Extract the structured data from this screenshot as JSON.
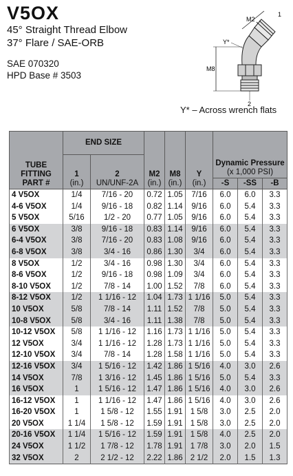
{
  "header": {
    "title": "V5OX",
    "line1": "45° Straight Thread Elbow",
    "line2": "37° Flare / SAE-ORB",
    "sae": "SAE 070320",
    "hpd": "HPD Base # 3503"
  },
  "figure": {
    "m2": "M2",
    "y": "Y*",
    "m8": "M8",
    "one": "1",
    "two": "2"
  },
  "note": "Y* – Across wrench flats",
  "table": {
    "h_tube": "TUBE FITTING PART #",
    "h_end": "END SIZE",
    "h_col1": "1",
    "h_col1_unit": "(in.)",
    "h_col2": "2",
    "h_col2_unit": "UN/UNF-2A",
    "h_m2": "M2",
    "h_m2_unit": "(in.)",
    "h_m8": "M8",
    "h_m8_unit": "(in.)",
    "h_y": "Y",
    "h_y_unit": "(in.)",
    "h_dyn": "Dynamic Pressure",
    "h_dyn_unit": "(x 1,000 PSI)",
    "h_s": "-S",
    "h_ss": "-SS",
    "h_b": "-B",
    "rows": [
      [
        "4 V5OX",
        "1/4",
        "7/16 - 20",
        "0.72",
        "1.05",
        "7/16",
        "6.0",
        "6.0",
        "3.3"
      ],
      [
        "4-6 V5OX",
        "1/4",
        "9/16 - 18",
        "0.82",
        "1.14",
        "9/16",
        "6.0",
        "5.4",
        "3.3"
      ],
      [
        "5 V5OX",
        "5/16",
        "1/2 - 20",
        "0.77",
        "1.05",
        "9/16",
        "6.0",
        "5.4",
        "3.3"
      ],
      [
        "6 V5OX",
        "3/8",
        "9/16 - 18",
        "0.83",
        "1.14",
        "9/16",
        "6.0",
        "5.4",
        "3.3"
      ],
      [
        "6-4 V5OX",
        "3/8",
        "7/16 - 20",
        "0.83",
        "1.08",
        "9/16",
        "6.0",
        "5.4",
        "3.3"
      ],
      [
        "6-8 V5OX",
        "3/8",
        "3/4 - 16",
        "0.86",
        "1.30",
        "3/4",
        "6.0",
        "5.4",
        "3.3"
      ],
      [
        "8 V5OX",
        "1/2",
        "3/4 - 16",
        "0.98",
        "1.30",
        "3/4",
        "6.0",
        "5.4",
        "3.3"
      ],
      [
        "8-6 V5OX",
        "1/2",
        "9/16 - 18",
        "0.98",
        "1.09",
        "3/4",
        "6.0",
        "5.4",
        "3.3"
      ],
      [
        "8-10 V5OX",
        "1/2",
        "7/8 - 14",
        "1.00",
        "1.52",
        "7/8",
        "6.0",
        "5.4",
        "3.3"
      ],
      [
        "8-12 V5OX",
        "1/2",
        "1 1/16 - 12",
        "1.04",
        "1.73",
        "1 1/16",
        "5.0",
        "5.4",
        "3.3"
      ],
      [
        "10 V5OX",
        "5/8",
        "7/8 - 14",
        "1.11",
        "1.52",
        "7/8",
        "5.0",
        "5.4",
        "3.3"
      ],
      [
        "10-8 V5OX",
        "5/8",
        "3/4 - 16",
        "1.11",
        "1.38",
        "7/8",
        "5.0",
        "5.4",
        "3.3"
      ],
      [
        "10-12 V5OX",
        "5/8",
        "1 1/16 - 12",
        "1.16",
        "1.73",
        "1 1/16",
        "5.0",
        "5.4",
        "3.3"
      ],
      [
        "12 V5OX",
        "3/4",
        "1 1/16 - 12",
        "1.28",
        "1.73",
        "1 1/16",
        "5.0",
        "5.4",
        "3.3"
      ],
      [
        "12-10 V5OX",
        "3/4",
        "7/8 - 14",
        "1.28",
        "1.58",
        "1 1/16",
        "5.0",
        "5.4",
        "3.3"
      ],
      [
        "12-16 V5OX",
        "3/4",
        "1 5/16 - 12",
        "1.42",
        "1.86",
        "1 5/16",
        "4.0",
        "3.0",
        "2.6"
      ],
      [
        "14 V5OX",
        "7/8",
        "1 3/16 - 12",
        "1.45",
        "1.86",
        "1 5/16",
        "5.0",
        "5.4",
        "3.3"
      ],
      [
        "16 V5OX",
        "1",
        "1 5/16 - 12",
        "1.47",
        "1.86",
        "1 5/16",
        "4.0",
        "3.0",
        "2.6"
      ],
      [
        "16-12 V5OX",
        "1",
        "1 1/16 - 12",
        "1.47",
        "1.86",
        "1 5/16",
        "4.0",
        "3.0",
        "2.6"
      ],
      [
        "16-20 V5OX",
        "1",
        "1 5/8 - 12",
        "1.55",
        "1.91",
        "1 5/8",
        "3.0",
        "2.5",
        "2.0"
      ],
      [
        "20 V5OX",
        "1 1/4",
        "1 5/8 - 12",
        "1.59",
        "1.91",
        "1 5/8",
        "3.0",
        "2.5",
        "2.0"
      ],
      [
        "20-16 V5OX",
        "1 1/4",
        "1 5/16 - 12",
        "1.59",
        "1.91",
        "1 5/8",
        "4.0",
        "2.5",
        "2.0"
      ],
      [
        "24 V5OX",
        "1 1/2",
        "1 7/8 - 12",
        "1.78",
        "1.91",
        "1 7/8",
        "3.0",
        "2.0",
        "1.5"
      ],
      [
        "32 V5OX",
        "2",
        "2 1/2 - 12",
        "2.22",
        "1.86",
        "2 1/2",
        "2.0",
        "1.5",
        "1.3"
      ]
    ]
  }
}
